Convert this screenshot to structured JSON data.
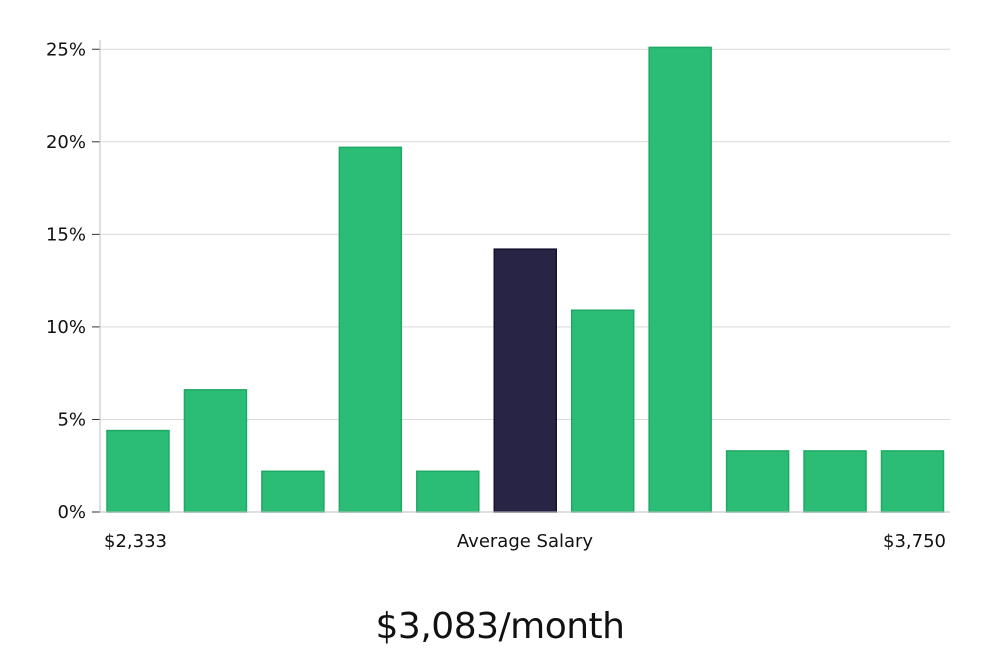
{
  "chart_data": {
    "type": "bar",
    "values": [
      4.4,
      6.6,
      2.2,
      19.7,
      2.2,
      14.2,
      10.9,
      25.1,
      3.3,
      3.3,
      3.3
    ],
    "highlight_index": 5,
    "y_unit": "%",
    "ylim": [
      0,
      25.5
    ],
    "yticks": [
      0,
      5,
      10,
      15,
      20,
      25
    ],
    "ytick_labels": [
      "0%",
      "5%",
      "10%",
      "15%",
      "20%",
      "25%"
    ],
    "x_min_label": "$2,333",
    "x_center_label": "Average Salary",
    "x_max_label": "$3,750",
    "grid": true,
    "colors": {
      "bar": "#2bbd76",
      "bar_edge": "#1fa864",
      "highlight": "#272446",
      "grid": "#d9d9d9",
      "axis": "#bfbfbf"
    }
  },
  "summary": {
    "salary": "$3,083/month"
  }
}
